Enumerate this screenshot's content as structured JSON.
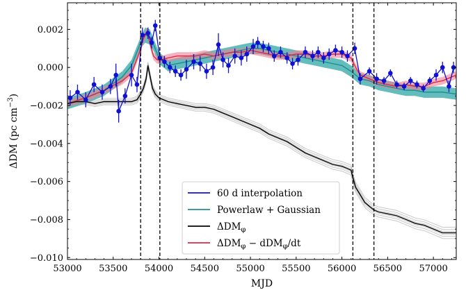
{
  "chart_data": {
    "type": "line",
    "xlabel": "MJD",
    "ylabel": "ΔDM (pc cm",
    "ylabel_exp": "−3",
    "ylabel_close": ")",
    "xlim": [
      53000,
      57250
    ],
    "ylim": [
      -0.0101,
      0.0034
    ],
    "xticks": [
      53000,
      53500,
      54000,
      54500,
      55000,
      55500,
      56000,
      56500,
      57000
    ],
    "xtick_labels": [
      "53000",
      "53500",
      "54000",
      "54500",
      "55000",
      "55500",
      "56000",
      "56500",
      "57000"
    ],
    "yticks": [
      0.002,
      0.0,
      -0.002,
      -0.004,
      -0.006,
      -0.008,
      -0.01
    ],
    "ytick_labels": [
      "0.002",
      "0.000",
      "−0.002",
      "−0.004",
      "−0.006",
      "−0.008",
      "−0.010"
    ],
    "vlines": [
      53800,
      54010,
      56120,
      56350
    ],
    "legend_placement": "lower-center",
    "grid": false,
    "series": [
      {
        "name": "60 d interpolation",
        "color": "#1010d0",
        "x": [
          53030,
          53110,
          53200,
          53290,
          53380,
          53470,
          53530,
          53560,
          53630,
          53700,
          53760,
          53820,
          53880,
          53920,
          53960,
          54010,
          54060,
          54120,
          54180,
          54240,
          54300,
          54380,
          54450,
          54520,
          54590,
          54650,
          54700,
          54760,
          54830,
          54900,
          54960,
          55030,
          55080,
          55140,
          55200,
          55260,
          55330,
          55400,
          55460,
          55520,
          55600,
          55680,
          55740,
          55800,
          55860,
          55930,
          56000,
          56060,
          56140,
          56200,
          56300,
          56380,
          56460,
          56530,
          56600,
          56680,
          56750,
          56820,
          56890,
          56960,
          57030,
          57100,
          57170,
          57220
        ],
        "y": [
          -0.0016,
          -0.0013,
          -0.0017,
          -0.0009,
          -0.0013,
          -0.001,
          -0.0004,
          -0.0023,
          -0.0015,
          -0.0004,
          -0.0009,
          0.0017,
          0.0018,
          0.0013,
          0.0022,
          0.0005,
          0.0003,
          0.0,
          -0.0002,
          -0.0004,
          -0.0001,
          0.0003,
          0.0002,
          -0.0002,
          0.0,
          0.0012,
          0.0004,
          0.0001,
          0.0006,
          0.0005,
          0.0007,
          0.0011,
          0.0013,
          0.0011,
          0.001,
          0.0006,
          0.0008,
          0.0005,
          0.0002,
          0.0004,
          0.0008,
          0.0006,
          0.0008,
          0.0005,
          0.0007,
          0.0009,
          0.0008,
          0.0006,
          0.001,
          -0.0006,
          -0.0002,
          -0.0006,
          -0.0007,
          -0.0003,
          -0.0009,
          -0.001,
          -0.0007,
          -0.0009,
          -0.0011,
          -0.0007,
          -0.0004,
          0.0,
          -0.001,
          0.0
        ],
        "err": [
          0.0004,
          0.0004,
          0.0004,
          0.0004,
          0.0004,
          0.0004,
          0.0006,
          0.0006,
          0.0004,
          0.0006,
          0.0004,
          0.0004,
          0.0003,
          0.0003,
          0.0003,
          0.0003,
          0.0003,
          0.0003,
          0.0003,
          0.0003,
          0.0005,
          0.0004,
          0.0004,
          0.0004,
          0.0004,
          0.0006,
          0.0004,
          0.0004,
          0.0004,
          0.0004,
          0.0004,
          0.0004,
          0.0003,
          0.0003,
          0.0003,
          0.0003,
          0.0003,
          0.0003,
          0.0003,
          0.0003,
          0.0003,
          0.0003,
          0.0003,
          0.0003,
          0.0003,
          0.0003,
          0.0003,
          0.0003,
          0.0003,
          0.0003,
          0.0002,
          0.0003,
          0.0002,
          0.0002,
          0.0002,
          0.0002,
          0.0002,
          0.0002,
          0.0002,
          0.0002,
          0.0003,
          0.0003,
          0.0003,
          0.0003
        ]
      },
      {
        "name": "Powerlaw + Gaussian",
        "color": "#1f8f8f",
        "band_color": "#49b2b2",
        "x": [
          53000,
          53200,
          53400,
          53600,
          53700,
          53800,
          53850,
          53900,
          53950,
          54000,
          54100,
          54200,
          54300,
          54400,
          54500,
          54600,
          54700,
          54800,
          54900,
          55000,
          55100,
          55200,
          55300,
          55400,
          55500,
          55600,
          55700,
          55800,
          55900,
          56000,
          56100,
          56150,
          56200,
          56300,
          56400,
          56500,
          56600,
          56700,
          56800,
          56900,
          57000,
          57100,
          57250
        ],
        "y": [
          -0.0019,
          -0.0016,
          -0.0012,
          -0.0005,
          0.0001,
          0.0013,
          0.0017,
          0.0016,
          0.0011,
          0.0005,
          0.0001,
          0.0002,
          0.0003,
          0.0004,
          0.0005,
          0.0006,
          0.0007,
          0.0008,
          0.0009,
          0.001,
          0.001,
          0.0009,
          0.0008,
          0.0007,
          0.0006,
          0.0005,
          0.0004,
          0.0003,
          0.0002,
          0.0001,
          -0.0002,
          -0.0004,
          -0.0006,
          -0.0007,
          -0.0009,
          -0.001,
          -0.0011,
          -0.0012,
          -0.0012,
          -0.0013,
          -0.0013,
          -0.0013,
          -0.0014
        ],
        "band_halfwidth": [
          0.0003,
          0.0003,
          0.0003,
          0.0003,
          0.0003,
          0.0003,
          0.0004,
          0.0004,
          0.0003,
          0.0003,
          0.0003,
          0.0003,
          0.0003,
          0.0003,
          0.0003,
          0.0003,
          0.0003,
          0.0003,
          0.0003,
          0.0003,
          0.0003,
          0.0003,
          0.0003,
          0.0003,
          0.0003,
          0.0003,
          0.0003,
          0.0003,
          0.0003,
          0.0003,
          0.0003,
          0.0003,
          0.0003,
          0.0003,
          0.0003,
          0.0003,
          0.0003,
          0.0003,
          0.0003,
          0.0003,
          0.0003,
          0.0003,
          0.0003
        ]
      },
      {
        "name": "ΔDM",
        "name_sub": "φ",
        "color": "#000000",
        "spread_color": "#9a9a9a",
        "x": [
          53000,
          53100,
          53200,
          53300,
          53400,
          53500,
          53600,
          53700,
          53760,
          53800,
          53830,
          53860,
          53880,
          53900,
          53930,
          53960,
          54000,
          54100,
          54200,
          54300,
          54400,
          54500,
          54600,
          54700,
          54800,
          54900,
          55000,
          55100,
          55200,
          55300,
          55400,
          55500,
          55600,
          55700,
          55800,
          55900,
          56000,
          56050,
          56100,
          56120,
          56150,
          56200,
          56250,
          56300,
          56350,
          56400,
          56500,
          56600,
          56700,
          56800,
          56900,
          57000,
          57100,
          57250
        ],
        "y": [
          -0.0019,
          -0.0018,
          -0.0018,
          -0.0019,
          -0.0018,
          -0.0018,
          -0.0018,
          -0.0018,
          -0.0017,
          -0.0014,
          -0.0011,
          -0.0006,
          0.0001,
          -0.0004,
          -0.0011,
          -0.0014,
          -0.0016,
          -0.0018,
          -0.0019,
          -0.002,
          -0.0021,
          -0.0021,
          -0.0022,
          -0.0024,
          -0.0026,
          -0.0028,
          -0.003,
          -0.0032,
          -0.0035,
          -0.0037,
          -0.0039,
          -0.0042,
          -0.0045,
          -0.0047,
          -0.0049,
          -0.0051,
          -0.0052,
          -0.0053,
          -0.0054,
          -0.0058,
          -0.0063,
          -0.0067,
          -0.0071,
          -0.0073,
          -0.0075,
          -0.0076,
          -0.0077,
          -0.0078,
          -0.008,
          -0.0082,
          -0.0083,
          -0.0085,
          -0.0087,
          -0.0087
        ],
        "spread": 0.0003
      },
      {
        "name": "ΔDM",
        "name_sub": "φ",
        "name_mid": " − dDM",
        "name_sub2": "φ",
        "name_tail": "/dt",
        "color": "#dc2845",
        "band_color": "#ef7f93",
        "x": [
          53000,
          53200,
          53400,
          53600,
          53700,
          53780,
          53830,
          53870,
          53900,
          53940,
          53980,
          54020,
          54100,
          54200,
          54300,
          54400,
          54500,
          54600,
          54700,
          54800,
          54900,
          55000,
          55100,
          55200,
          55300,
          55400,
          55500,
          55600,
          55700,
          55800,
          55900,
          56000,
          56100,
          56150,
          56200,
          56300,
          56400,
          56500,
          56600,
          56700,
          56800,
          56900,
          57000,
          57100,
          57250
        ],
        "y": [
          -0.0019,
          -0.0016,
          -0.0012,
          -0.0007,
          -0.0003,
          0.0007,
          0.0015,
          0.0019,
          0.0013,
          0.0006,
          0.0004,
          0.0004,
          0.0005,
          0.0006,
          0.0006,
          0.0006,
          0.0007,
          0.0006,
          0.0007,
          0.0008,
          0.0008,
          0.0009,
          0.0008,
          0.0007,
          0.0006,
          0.0006,
          0.0007,
          0.0007,
          0.0006,
          0.0006,
          0.0007,
          0.0007,
          0.0005,
          0.0,
          -0.0004,
          -0.0006,
          -0.0008,
          -0.0009,
          -0.001,
          -0.0009,
          -0.001,
          -0.001,
          -0.0008,
          -0.0007,
          -0.0004
        ],
        "band_halfwidth": 0.0002
      }
    ]
  }
}
